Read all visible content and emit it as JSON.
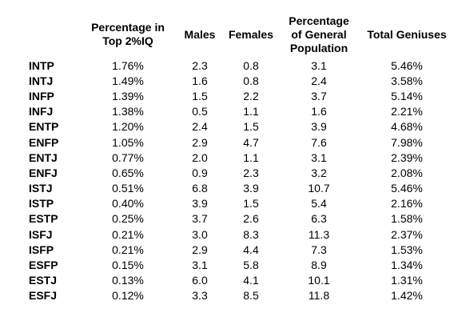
{
  "table": {
    "headers": [
      "",
      "Percentage in\nTop 2%IQ",
      "Males",
      "Females",
      "Percentage\nof General\nPopulation",
      "Total Geniuses"
    ],
    "rows": [
      {
        "type": "INTP",
        "top2": "1.76%",
        "males": "2.3",
        "females": "0.8",
        "general": "3.1",
        "geniuses": "5.46%"
      },
      {
        "type": "INTJ",
        "top2": "1.49%",
        "males": "1.6",
        "females": "0.8",
        "general": "2.4",
        "geniuses": "3.58%"
      },
      {
        "type": "INFP",
        "top2": "1.39%",
        "males": "1.5",
        "females": "2.2",
        "general": "3.7",
        "geniuses": "5.14%"
      },
      {
        "type": "INFJ",
        "top2": "1.38%",
        "males": "0.5",
        "females": "1.1",
        "general": "1.6",
        "geniuses": "2.21%"
      },
      {
        "type": "ENTP",
        "top2": "1.20%",
        "males": "2.4",
        "females": "1.5",
        "general": "3.9",
        "geniuses": "4.68%"
      },
      {
        "type": "ENFP",
        "top2": "1.05%",
        "males": "2.9",
        "females": "4.7",
        "general": "7.6",
        "geniuses": "7.98%"
      },
      {
        "type": "ENTJ",
        "top2": "0.77%",
        "males": "2.0",
        "females": "1.1",
        "general": "3.1",
        "geniuses": "2.39%"
      },
      {
        "type": "ENFJ",
        "top2": "0.65%",
        "males": "0.9",
        "females": "2.3",
        "general": "3.2",
        "geniuses": "2.08%"
      },
      {
        "type": "ISTJ",
        "top2": "0.51%",
        "males": "6.8",
        "females": "3.9",
        "general": "10.7",
        "geniuses": "5.46%"
      },
      {
        "type": "ISTP",
        "top2": "0.40%",
        "males": "3.9",
        "females": "1.5",
        "general": "5.4",
        "geniuses": "2.16%"
      },
      {
        "type": "ESTP",
        "top2": "0.25%",
        "males": "3.7",
        "females": "2.6",
        "general": "6.3",
        "geniuses": "1.58%"
      },
      {
        "type": "ISFJ",
        "top2": "0.21%",
        "males": "3.0",
        "females": "8.3",
        "general": "11.3",
        "geniuses": "2.37%"
      },
      {
        "type": "ISFP",
        "top2": "0.21%",
        "males": "2.9",
        "females": "4.4",
        "general": "7.3",
        "geniuses": "1.53%"
      },
      {
        "type": "ESFP",
        "top2": "0.15%",
        "males": "3.1",
        "females": "5.8",
        "general": "8.9",
        "geniuses": "1.34%"
      },
      {
        "type": "ESTJ",
        "top2": "0.13%",
        "males": "6.0",
        "females": "4.1",
        "general": "10.1",
        "geniuses": "1.31%"
      },
      {
        "type": "ESFJ",
        "top2": "0.12%",
        "males": "3.3",
        "females": "8.5",
        "general": "11.8",
        "geniuses": "1.42%"
      }
    ]
  }
}
